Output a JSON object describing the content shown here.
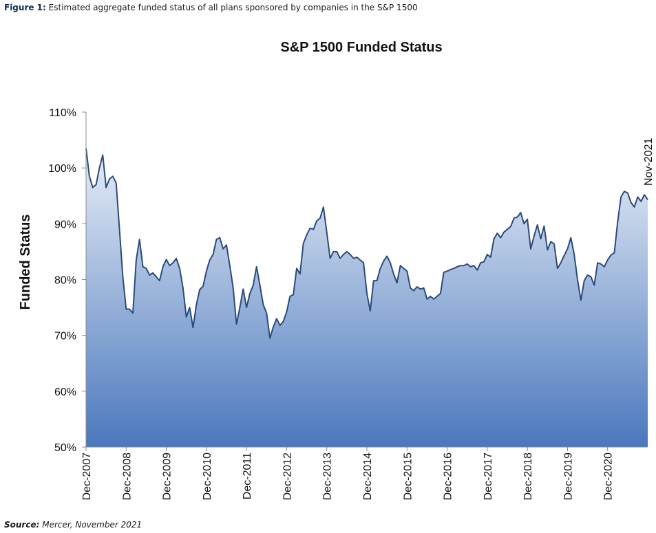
{
  "caption": {
    "label": "Figure 1:",
    "text": "Estimated aggregate funded status of all plans sponsored by companies in the S&P 1500"
  },
  "source": {
    "label": "Source:",
    "text": "Mercer, November 2021"
  },
  "colors": {
    "line": "#2b4a7a",
    "fill_top": "#e8eef7",
    "fill_bottom": "#4a78bd",
    "axis": "#888888"
  },
  "chart_data": {
    "type": "area",
    "title": "S&P 1500 Funded Status",
    "ylabel": "Funded Status",
    "xlabel": "",
    "ylim": [
      50,
      110
    ],
    "y_ticks": [
      "50%",
      "60%",
      "70%",
      "80%",
      "90%",
      "100%",
      "110%"
    ],
    "y_tick_values": [
      50,
      60,
      70,
      80,
      90,
      100,
      110
    ],
    "x_tick_labels": [
      "Dec-2007",
      "Dec-2008",
      "Dec-2009",
      "Dec-2010",
      "Dec-2011",
      "Dec-2012",
      "Dec-2013",
      "Dec-2014",
      "Dec-2015",
      "Dec-2016",
      "Dec-2017",
      "Dec-2018",
      "Dec-2019",
      "Dec-2020"
    ],
    "annotation": "Nov-2021",
    "grid": false,
    "legend": "none",
    "series": [
      {
        "values": [
          103.5,
          98.5,
          96.5,
          97.0,
          100.0,
          102.3,
          96.5,
          98.0,
          98.5,
          97.3,
          89.0,
          80.5,
          74.7,
          74.7,
          74.0,
          83.5,
          87.2,
          82.3,
          82.0,
          80.8,
          81.2,
          80.5,
          79.8,
          82.3,
          83.6,
          82.5,
          83.0,
          83.8,
          82.0,
          78.5,
          73.3,
          75.0,
          71.4,
          75.5,
          78.2,
          78.8,
          81.5,
          83.5,
          84.5,
          87.2,
          87.5,
          85.5,
          86.2,
          82.5,
          78.5,
          72.0,
          75.0,
          78.3,
          75.0,
          77.5,
          79.0,
          82.3,
          79.0,
          75.5,
          74.0,
          69.5,
          71.5,
          73.0,
          71.8,
          72.5,
          74.2,
          77.0,
          77.3,
          82.0,
          81.0,
          86.5,
          88.0,
          89.2,
          89.0,
          90.5,
          91.0,
          93.0,
          88.5,
          83.8,
          85.0,
          85.0,
          83.8,
          84.5,
          85.0,
          84.5,
          83.8,
          84.0,
          83.5,
          83.0,
          77.5,
          74.4,
          79.8,
          79.8,
          82.0,
          83.3,
          84.2,
          83.0,
          81.0,
          79.4,
          82.5,
          82.0,
          81.5,
          78.5,
          78.0,
          78.7,
          78.3,
          78.5,
          76.5,
          77.0,
          76.5,
          77.0,
          77.5,
          81.3,
          81.5,
          81.8,
          82.0,
          82.3,
          82.5,
          82.5,
          82.8,
          82.3,
          82.5,
          81.7,
          83.0,
          83.2,
          84.5,
          84.0,
          87.3,
          88.3,
          87.5,
          88.5,
          89.0,
          89.5,
          91.0,
          91.2,
          92.0,
          90.0,
          90.8,
          85.5,
          87.8,
          89.8,
          87.3,
          89.6,
          85.3,
          86.8,
          86.4,
          82.0,
          83.0,
          84.3,
          85.5,
          87.5,
          84.5,
          80.0,
          76.3,
          79.8,
          80.8,
          80.5,
          79.0,
          83.0,
          82.8,
          82.3,
          83.5,
          84.4,
          84.8,
          90.3,
          94.8,
          95.8,
          95.5,
          93.8,
          93.0,
          94.8,
          94.0,
          95.2,
          94.3
        ]
      }
    ]
  }
}
